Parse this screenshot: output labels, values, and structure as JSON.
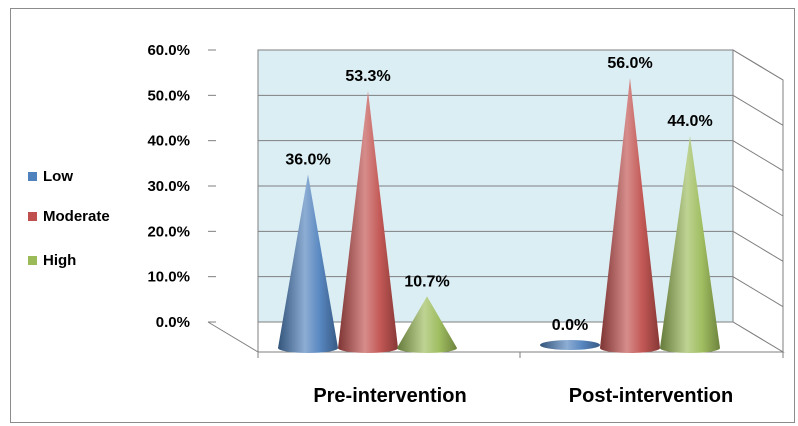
{
  "chart_data": {
    "type": "bar",
    "style": "3d-cone",
    "categories": [
      "Pre-intervention",
      "Post-intervention"
    ],
    "series": [
      {
        "name": "Low",
        "color": "#4f81bd",
        "values": [
          36.0,
          0.0
        ],
        "labels": [
          "36.0%",
          "0.0%"
        ]
      },
      {
        "name": "Moderate",
        "color": "#c0504d",
        "values": [
          53.3,
          56.0
        ],
        "labels": [
          "53.3%",
          "56.0%"
        ]
      },
      {
        "name": "High",
        "color": "#9bbb59",
        "values": [
          10.7,
          44.0
        ],
        "labels": [
          "10.7%",
          "44.0%"
        ]
      }
    ],
    "ylim": [
      0,
      60
    ],
    "yticks": [
      "0.0%",
      "10.0%",
      "20.0%",
      "30.0%",
      "40.0%",
      "50.0%",
      "60.0%"
    ],
    "ytick_values": [
      0,
      10,
      20,
      30,
      40,
      50,
      60
    ],
    "legend": "left",
    "grid": true,
    "wall_color": "#dbeef4"
  }
}
